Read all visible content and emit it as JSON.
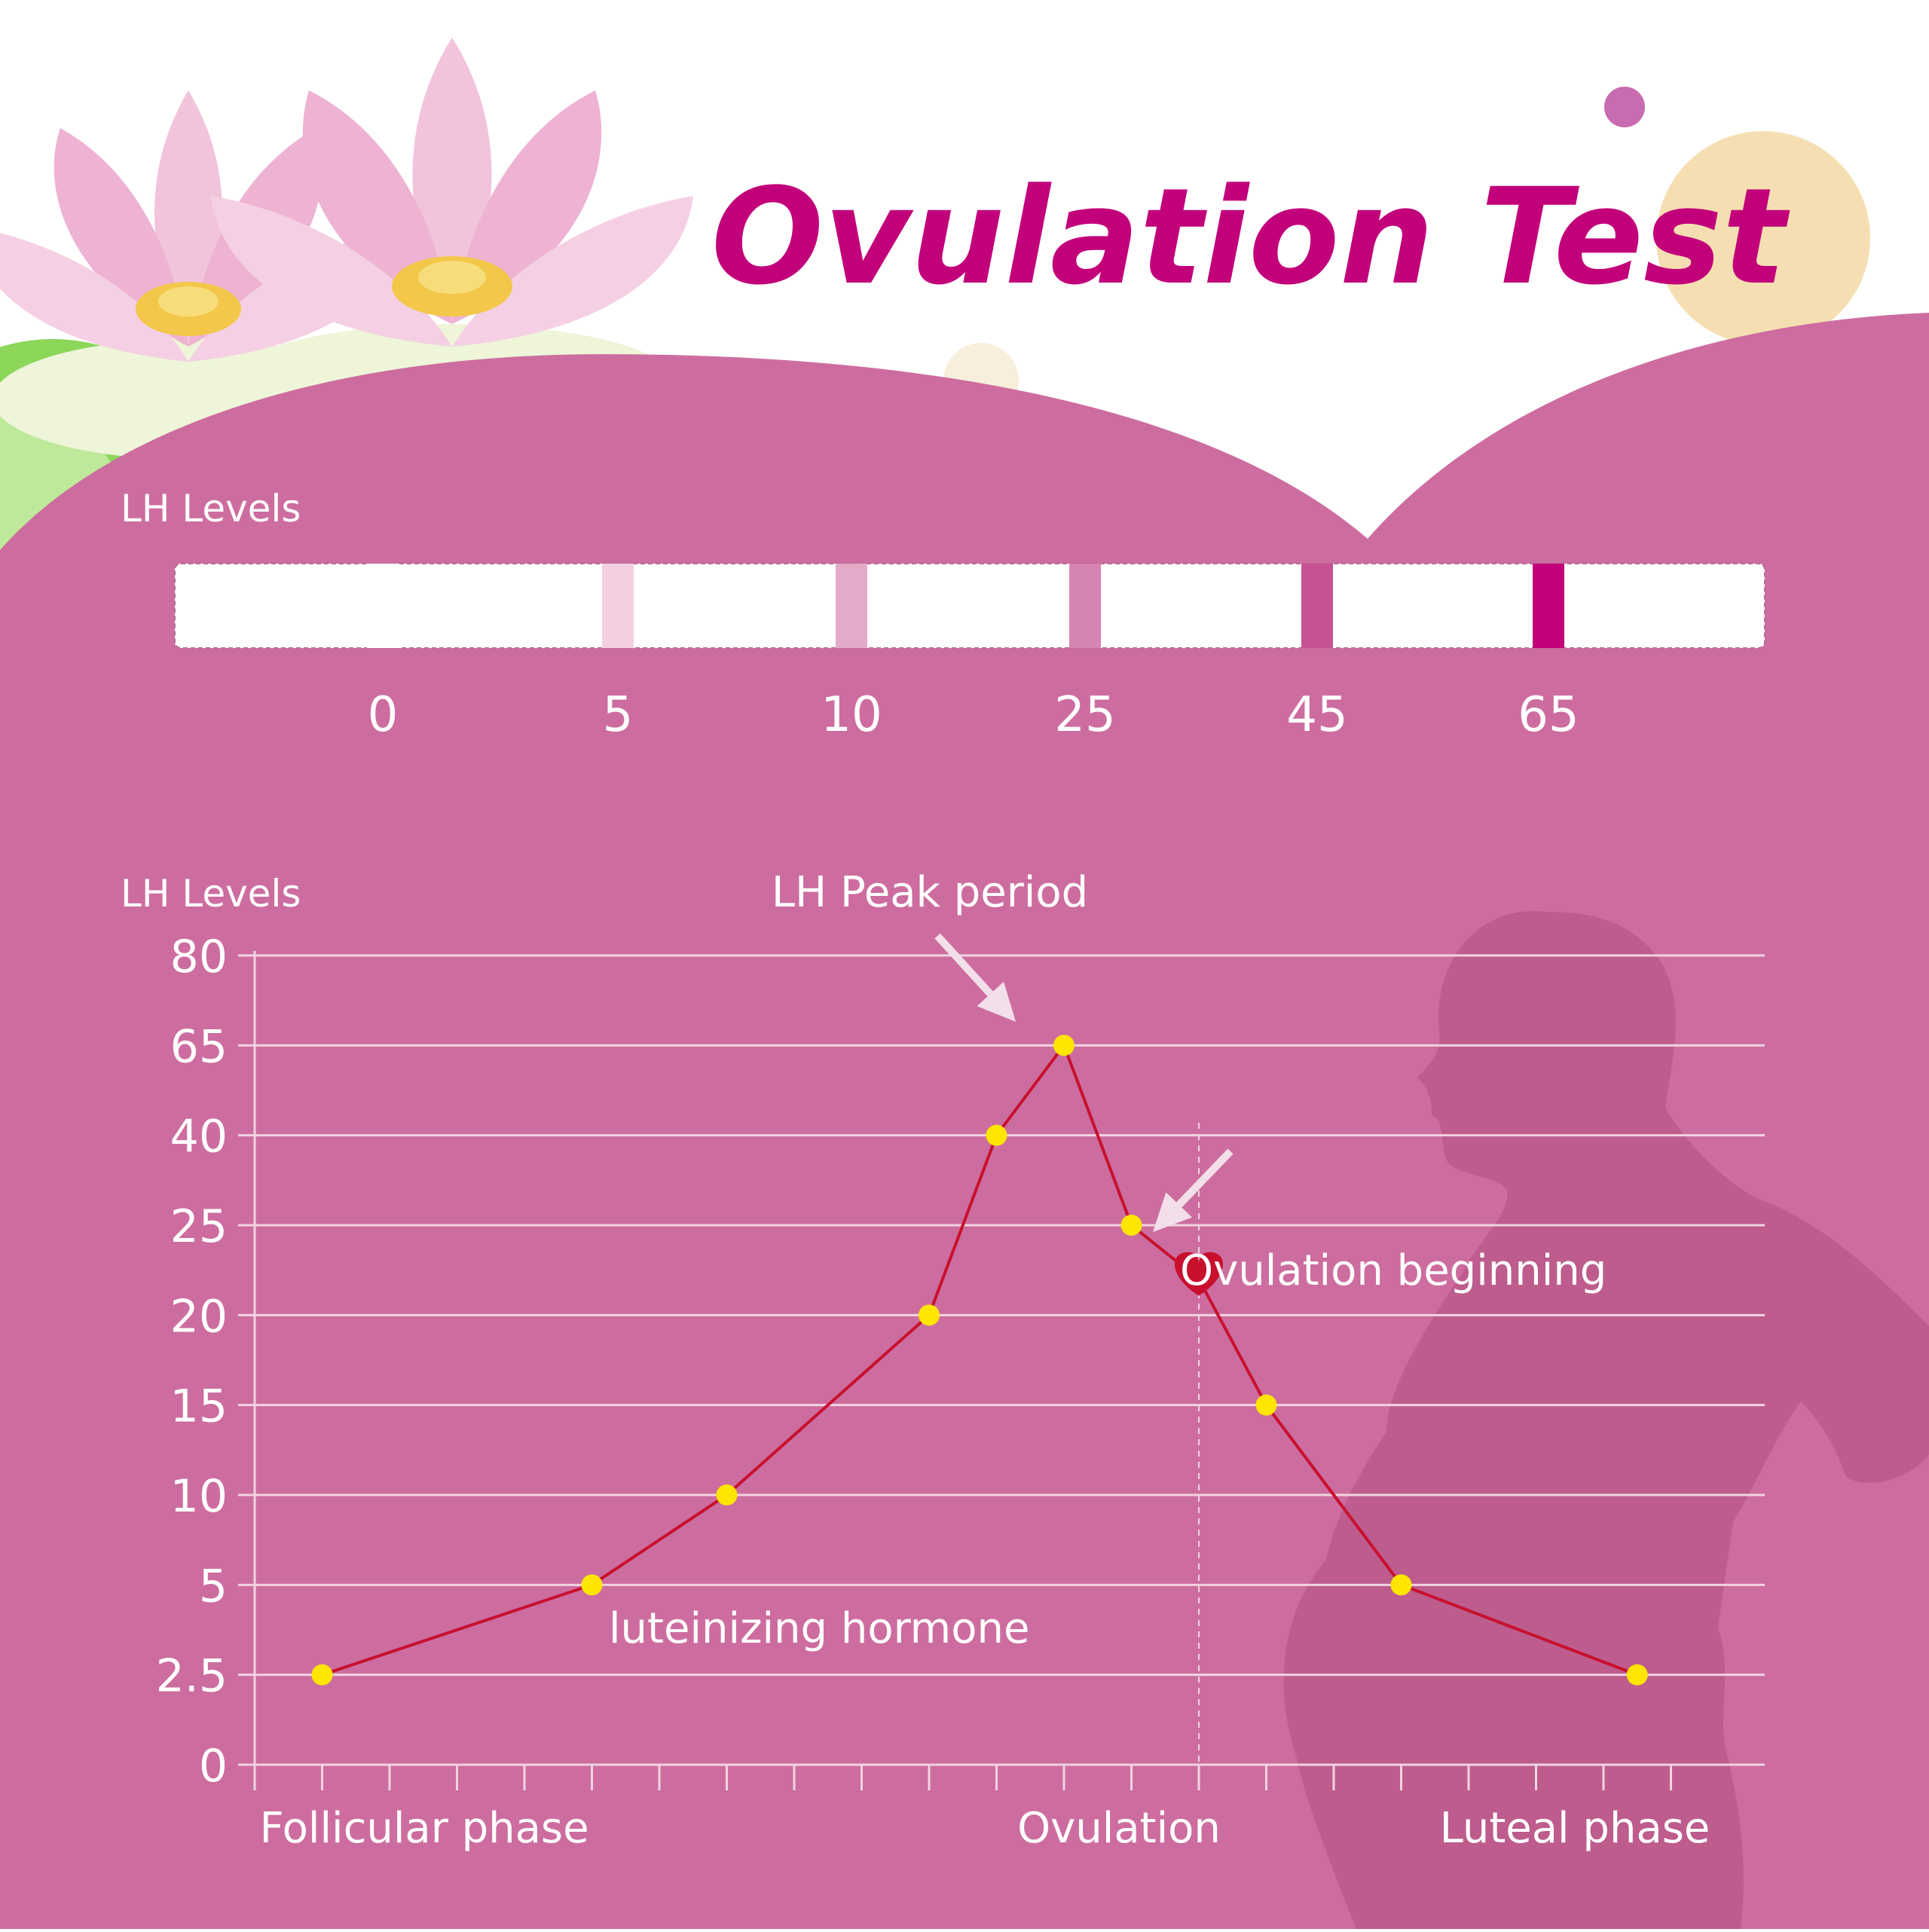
{
  "title": "Ovulation Test",
  "colors": {
    "background_top": "#ffffff",
    "panel": "#cd6d9f",
    "title": "#c2007a",
    "silhouette": "#bd5c8d",
    "grid": "#f1d3e3",
    "line": "#c8102e",
    "point": "#ffe600",
    "heart": "#c8102e",
    "text": "#ffffff"
  },
  "strip": {
    "label": "LH Levels",
    "levels": [
      {
        "label": "0",
        "value": 0,
        "color": "#ffffff"
      },
      {
        "label": "5",
        "value": 5,
        "color": "#f2d0e1"
      },
      {
        "label": "10",
        "value": 10,
        "color": "#e4aaca"
      },
      {
        "label": "25",
        "value": 25,
        "color": "#d684b1"
      },
      {
        "label": "45",
        "value": 45,
        "color": "#c65292"
      },
      {
        "label": "65",
        "value": 65,
        "color": "#c2007a"
      }
    ]
  },
  "chart_data": {
    "type": "line",
    "ylabel": "LH Levels",
    "xlabel": "",
    "y_ticks": [
      "0",
      "2.5",
      "5",
      "10",
      "15",
      "20",
      "25",
      "40",
      "65",
      "80"
    ],
    "x_axis_labels": [
      "Follicular phase",
      "Ovulation",
      "Luteal phase"
    ],
    "x_ticks_count": 22,
    "grid": "horizontal",
    "series": [
      {
        "name": "",
        "points": [
          {
            "x": 1,
            "y": 2.5
          },
          {
            "x": 5,
            "y": 5
          },
          {
            "x": 7,
            "y": 10
          },
          {
            "x": 10,
            "y": 20
          },
          {
            "x": 11,
            "y": 40
          },
          {
            "x": 12,
            "y": 65
          },
          {
            "x": 13,
            "y": 25
          },
          {
            "x": 14,
            "y": 22
          },
          {
            "x": 15,
            "y": 15
          },
          {
            "x": 17,
            "y": 5
          },
          {
            "x": 20.5,
            "y": 2.5
          }
        ]
      }
    ],
    "annotations": [
      {
        "text": "LH Peak period",
        "target_x": 12,
        "target_y": 65
      },
      {
        "text": "Ovulation beginning",
        "target_x": 14,
        "target_y": 22
      },
      {
        "text": "luteinizing hormone",
        "target_x": 5,
        "target_y": 5
      }
    ],
    "ovulation_x": 14
  }
}
